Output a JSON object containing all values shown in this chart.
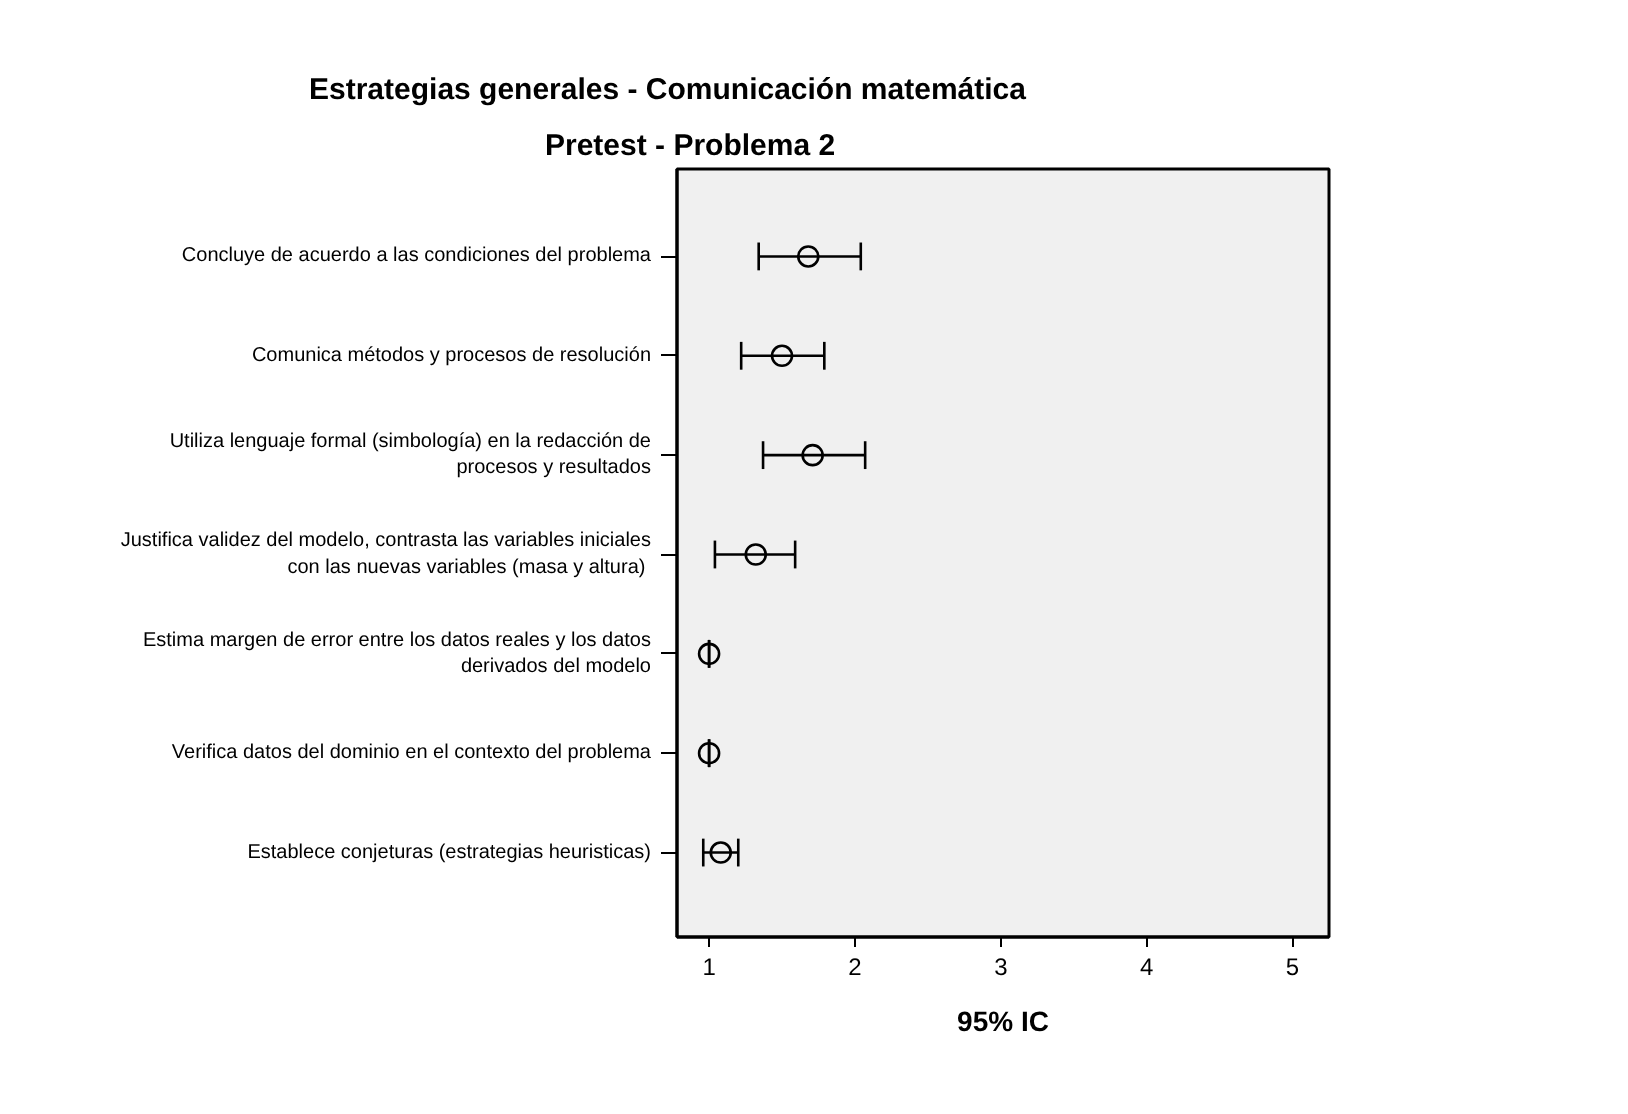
{
  "chart_data": {
    "type": "scatter",
    "orientation": "horizontal",
    "title": "Estrategias generales - Comunicación matemática",
    "subtitle": "Pretest - Problema 2",
    "xlabel": "95% IC",
    "categories": [
      "Concluye de acuerdo a las condiciones del problema",
      "Comunica métodos y procesos de resolución",
      "Utiliza lenguaje formal (simbología) en la redacción de\nprocesos y resultados",
      "Justifica validez del modelo, contrasta las variables iniciales\ncon las nuevas variables (masa  y altura)",
      "Estima margen de error entre los datos reales y los datos\nderivados del modelo",
      "Verifica datos del dominio en el contexto del problema",
      "Establece conjeturas (estrategias heuristicas)"
    ],
    "values": [
      1.68,
      1.5,
      1.71,
      1.32,
      1.0,
      1.0,
      1.08
    ],
    "errors": [
      [
        1.34,
        2.04
      ],
      [
        1.22,
        1.79
      ],
      [
        1.37,
        2.07
      ],
      [
        1.04,
        1.59
      ],
      0,
      0,
      [
        0.96,
        1.2
      ]
    ],
    "color": "#000000",
    "marker": "circle",
    "xlim": [
      0.78,
      5.25
    ],
    "xticks": [
      1,
      2,
      3,
      4,
      5
    ],
    "grid": false
  }
}
